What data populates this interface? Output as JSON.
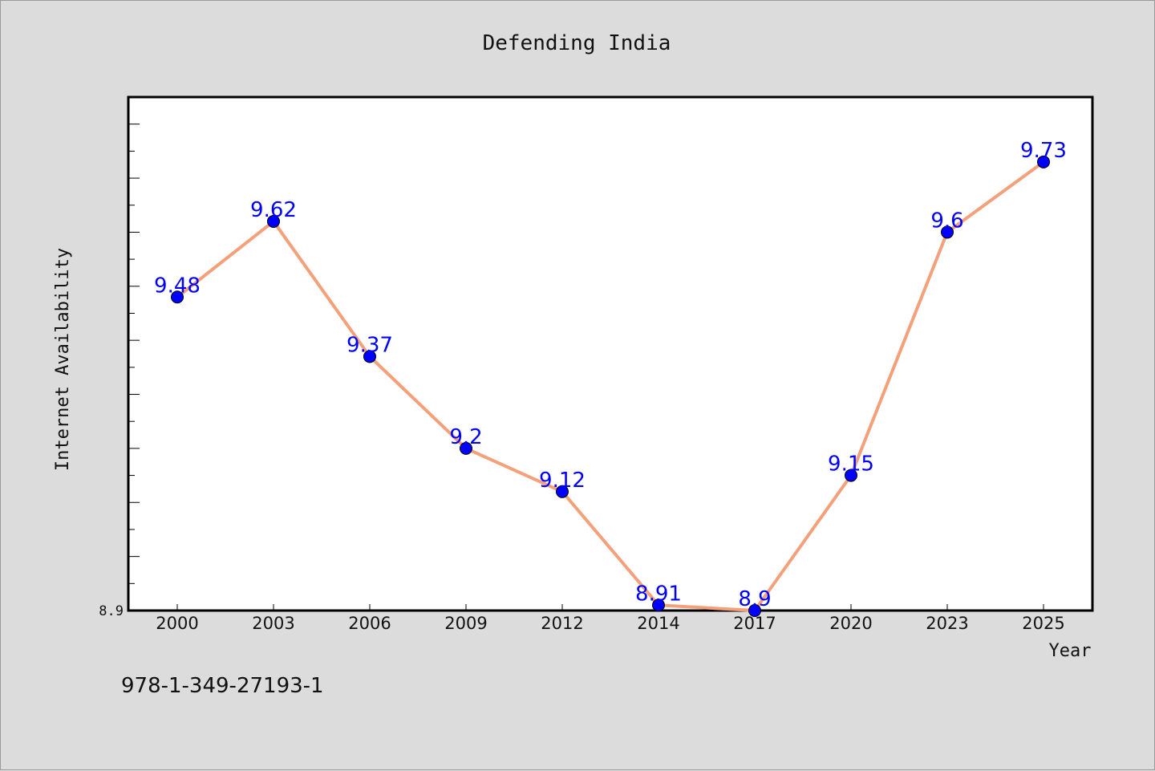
{
  "chart_data": {
    "type": "line",
    "title": "Defending India",
    "xlabel": "Year",
    "ylabel": "Internet Availability",
    "categories": [
      "2000",
      "2003",
      "2006",
      "2009",
      "2012",
      "2014",
      "2017",
      "2020",
      "2023",
      "2025"
    ],
    "series": [
      {
        "values": [
          9.48,
          9.62,
          9.37,
          9.2,
          9.12,
          8.91,
          8.9,
          9.15,
          9.6,
          9.73
        ],
        "line_color": "#f4a07a",
        "marker_color": "#0000ff"
      }
    ],
    "data_labels": [
      "9.48",
      "9.62",
      "9.37",
      "9.2",
      "9.12",
      "8.91",
      "8.9",
      "9.15",
      "9.6",
      "9.73"
    ],
    "y_tick_labels": [
      "8.9"
    ],
    "ylim": [
      8.9,
      9.85
    ],
    "grid": false,
    "legend": "none"
  },
  "footer_text": "978-1-349-27193-1"
}
